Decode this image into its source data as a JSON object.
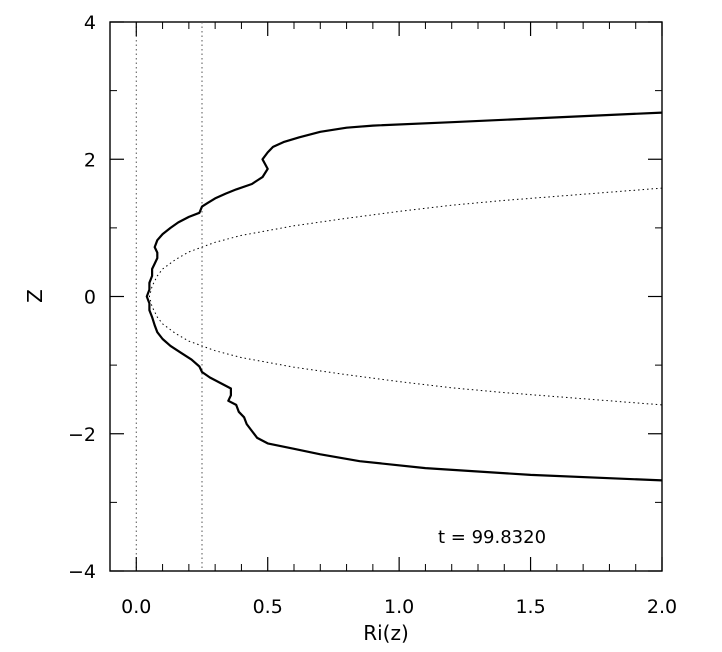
{
  "chart_data": {
    "type": "line",
    "xlabel": "Ri(z)",
    "ylabel": "Z",
    "xlim": [
      -0.1,
      2.0
    ],
    "ylim": [
      -4,
      4
    ],
    "x_ticks": [
      0.0,
      0.5,
      1.0,
      1.5,
      2.0
    ],
    "x_tick_labels": [
      "0.0",
      "0.5",
      "1.0",
      "1.5",
      "2.0"
    ],
    "y_ticks": [
      -4,
      -2,
      0,
      2,
      4
    ],
    "y_tick_labels": [
      "−4",
      "−2",
      "0",
      "2",
      "4"
    ],
    "annotation": "t = 99.8320",
    "reference_lines_x": [
      0.0,
      0.25
    ],
    "series": [
      {
        "style": "solid",
        "color": "#000000",
        "points": [
          [
            2.0,
            2.68
          ],
          [
            1.6,
            2.61
          ],
          [
            1.2,
            2.54
          ],
          [
            0.9,
            2.49
          ],
          [
            0.8,
            2.46
          ],
          [
            0.7,
            2.4
          ],
          [
            0.62,
            2.32
          ],
          [
            0.56,
            2.25
          ],
          [
            0.52,
            2.18
          ],
          [
            0.5,
            2.1
          ],
          [
            0.48,
            2.0
          ],
          [
            0.5,
            1.86
          ],
          [
            0.48,
            1.74
          ],
          [
            0.46,
            1.69
          ],
          [
            0.44,
            1.64
          ],
          [
            0.38,
            1.56
          ],
          [
            0.34,
            1.5
          ],
          [
            0.3,
            1.43
          ],
          [
            0.27,
            1.36
          ],
          [
            0.25,
            1.31
          ],
          [
            0.24,
            1.22
          ],
          [
            0.2,
            1.16
          ],
          [
            0.16,
            1.08
          ],
          [
            0.13,
            1.0
          ],
          [
            0.1,
            0.91
          ],
          [
            0.08,
            0.82
          ],
          [
            0.07,
            0.72
          ],
          [
            0.08,
            0.64
          ],
          [
            0.08,
            0.56
          ],
          [
            0.07,
            0.48
          ],
          [
            0.06,
            0.4
          ],
          [
            0.06,
            0.3
          ],
          [
            0.05,
            0.2
          ],
          [
            0.05,
            0.1
          ],
          [
            0.04,
            0.0
          ],
          [
            0.05,
            -0.1
          ],
          [
            0.05,
            -0.2
          ],
          [
            0.06,
            -0.3
          ],
          [
            0.07,
            -0.42
          ],
          [
            0.08,
            -0.52
          ],
          [
            0.1,
            -0.62
          ],
          [
            0.13,
            -0.72
          ],
          [
            0.17,
            -0.82
          ],
          [
            0.21,
            -0.92
          ],
          [
            0.24,
            -1.02
          ],
          [
            0.25,
            -1.1
          ],
          [
            0.28,
            -1.18
          ],
          [
            0.32,
            -1.26
          ],
          [
            0.36,
            -1.34
          ],
          [
            0.36,
            -1.44
          ],
          [
            0.35,
            -1.52
          ],
          [
            0.38,
            -1.58
          ],
          [
            0.39,
            -1.68
          ],
          [
            0.41,
            -1.76
          ],
          [
            0.42,
            -1.86
          ],
          [
            0.44,
            -1.96
          ],
          [
            0.46,
            -2.06
          ],
          [
            0.5,
            -2.14
          ],
          [
            0.6,
            -2.22
          ],
          [
            0.7,
            -2.3
          ],
          [
            0.85,
            -2.4
          ],
          [
            1.1,
            -2.5
          ],
          [
            1.5,
            -2.6
          ],
          [
            2.0,
            -2.68
          ]
        ]
      },
      {
        "style": "dotted",
        "color": "#000000",
        "points": [
          [
            2.0,
            1.58
          ],
          [
            1.8,
            1.52
          ],
          [
            1.6,
            1.46
          ],
          [
            1.4,
            1.4
          ],
          [
            1.2,
            1.33
          ],
          [
            1.0,
            1.24
          ],
          [
            0.8,
            1.14
          ],
          [
            0.6,
            1.03
          ],
          [
            0.5,
            0.96
          ],
          [
            0.4,
            0.89
          ],
          [
            0.3,
            0.79
          ],
          [
            0.2,
            0.65
          ],
          [
            0.15,
            0.54
          ],
          [
            0.1,
            0.4
          ],
          [
            0.08,
            0.3
          ],
          [
            0.06,
            0.15
          ],
          [
            0.05,
            0.0
          ],
          [
            0.06,
            -0.15
          ],
          [
            0.08,
            -0.3
          ],
          [
            0.1,
            -0.4
          ],
          [
            0.15,
            -0.54
          ],
          [
            0.2,
            -0.65
          ],
          [
            0.3,
            -0.79
          ],
          [
            0.4,
            -0.89
          ],
          [
            0.5,
            -0.96
          ],
          [
            0.6,
            -1.03
          ],
          [
            0.8,
            -1.14
          ],
          [
            1.0,
            -1.24
          ],
          [
            1.2,
            -1.33
          ],
          [
            1.4,
            -1.4
          ],
          [
            1.6,
            -1.46
          ],
          [
            1.8,
            -1.52
          ],
          [
            2.0,
            -1.58
          ]
        ]
      }
    ]
  }
}
